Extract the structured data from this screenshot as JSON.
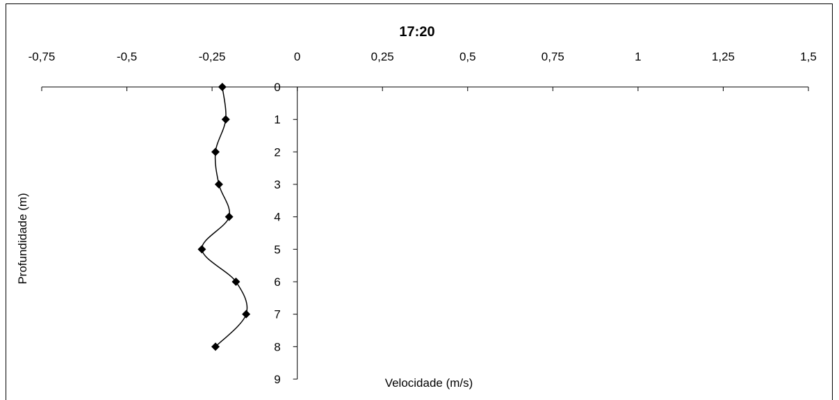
{
  "chart_data": {
    "type": "line",
    "title": "17:20",
    "xlabel": "Velocidade (m/s)",
    "ylabel": "Profundidade (m)",
    "xlim": [
      -0.75,
      1.5
    ],
    "ylim": [
      0,
      9
    ],
    "y_reversed": true,
    "x_axis_position": "top",
    "grid": false,
    "legend": "none",
    "x_ticks": [
      "-0,75",
      "-0,5",
      "-0,25",
      "0",
      "0,25",
      "0,5",
      "0,75",
      "1",
      "1,25",
      "1,5"
    ],
    "y_ticks": [
      "0",
      "1",
      "2",
      "3",
      "4",
      "5",
      "6",
      "7",
      "8",
      "9"
    ],
    "series": [
      {
        "marker": "diamond",
        "smooth": true,
        "color": "#000000",
        "points": [
          {
            "x": -0.22,
            "y": 0
          },
          {
            "x": -0.21,
            "y": 1
          },
          {
            "x": -0.24,
            "y": 2
          },
          {
            "x": -0.23,
            "y": 3
          },
          {
            "x": -0.2,
            "y": 4
          },
          {
            "x": -0.28,
            "y": 5
          },
          {
            "x": -0.18,
            "y": 6
          },
          {
            "x": -0.15,
            "y": 7
          },
          {
            "x": -0.24,
            "y": 8
          }
        ]
      }
    ]
  }
}
